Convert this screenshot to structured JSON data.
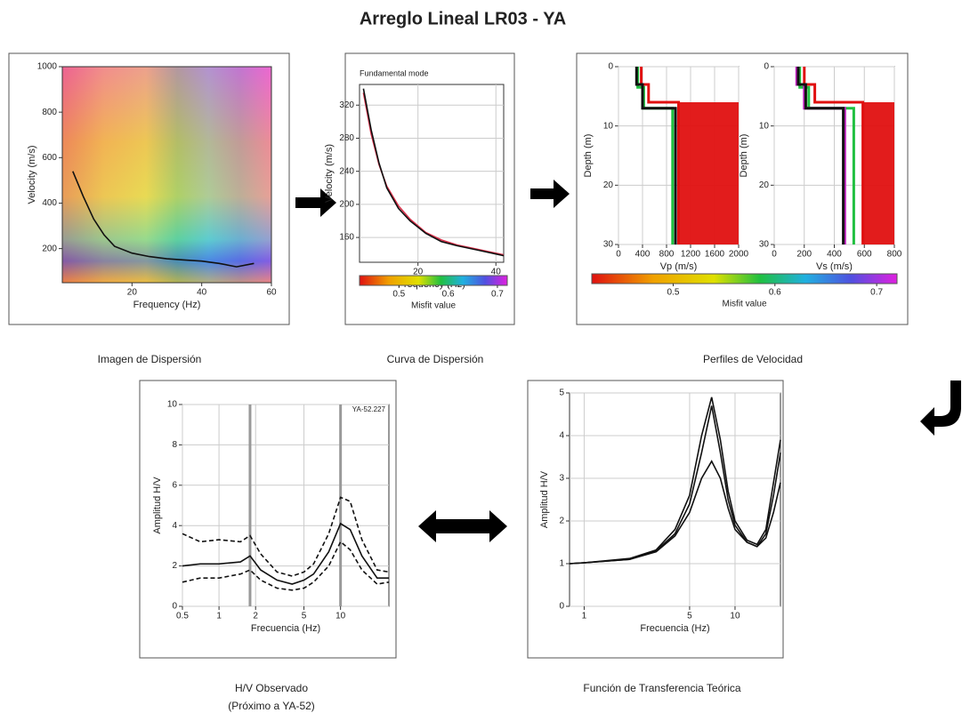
{
  "title": "Arreglo Lineal LR03 - YA",
  "captions": [
    "Imagen de Dispersión",
    "Curva de Dispersión",
    "Perfiles de Velocidad",
    "H/V Observado",
    "(Próximo a YA-52)",
    "Función de Transferencia Teórica"
  ],
  "chart_data": [
    {
      "type": "line",
      "xlabel": "Frequency (Hz)",
      "ylabel": "Velocity (m/s)",
      "xlim": [
        0,
        60
      ],
      "ylim": [
        50,
        1000
      ],
      "xticks": [
        20,
        40,
        60
      ],
      "yticks": [
        200,
        400,
        600,
        800,
        1000
      ],
      "series": [
        {
          "color": "#111111",
          "x": [
            3,
            6,
            9,
            12,
            15,
            20,
            25,
            30,
            35,
            40,
            45,
            50,
            55
          ],
          "values": [
            540,
            430,
            330,
            260,
            210,
            180,
            165,
            155,
            150,
            145,
            135,
            120,
            135
          ]
        }
      ]
    },
    {
      "type": "line",
      "title": "Fundamental mode",
      "xlabel": "Frequency (Hz)",
      "ylabel": "Velocity (m/s)",
      "xlim": [
        5,
        42
      ],
      "ylim": [
        130,
        345
      ],
      "xticks": [
        20,
        40
      ],
      "yticks": [
        160,
        200,
        240,
        280,
        320
      ],
      "grid": true,
      "series": [
        {
          "color": "#d9304a",
          "x": [
            6,
            8,
            10,
            12,
            15,
            18,
            22,
            26,
            30,
            35,
            40,
            42
          ],
          "values": [
            335,
            285,
            248,
            222,
            198,
            182,
            166,
            157,
            151,
            146,
            141,
            139
          ]
        },
        {
          "color": "#111111",
          "x": [
            6,
            8,
            10,
            12,
            15,
            18,
            22,
            26,
            30,
            35,
            40,
            42
          ],
          "values": [
            340,
            290,
            250,
            220,
            195,
            180,
            165,
            155,
            150,
            145,
            140,
            138
          ]
        }
      ],
      "colorbar": {
        "label": "Misfit value",
        "lim": [
          0.42,
          0.72
        ],
        "ticks": [
          0.5,
          0.6,
          0.7
        ]
      }
    },
    {
      "type": "profile",
      "xlabel": "Vp (m/s)",
      "ylabel": "Depth (m)",
      "xlim": [
        0,
        2000
      ],
      "ylim": [
        30,
        0
      ],
      "xticks": [
        0,
        400,
        800,
        1200,
        1600,
        2000
      ],
      "yticks": [
        0,
        10,
        20,
        30
      ],
      "grid": true,
      "series": [
        {
          "color": "#e01010",
          "x": [
            380,
            380,
            500,
            500,
            1000,
            1000
          ],
          "values": [
            0,
            3,
            3,
            6,
            6,
            30
          ]
        },
        {
          "color": "#20c040",
          "x": [
            320,
            320,
            420,
            420,
            900,
            900
          ],
          "values": [
            0,
            3.5,
            3.5,
            7,
            7,
            30
          ]
        },
        {
          "color": "#111111",
          "x": [
            300,
            300,
            400,
            400,
            950,
            950
          ],
          "values": [
            0,
            3,
            3,
            7,
            7,
            30
          ]
        }
      ]
    },
    {
      "type": "profile",
      "xlabel": "Vs (m/s)",
      "ylabel": "Depth (m)",
      "xlim": [
        0,
        800
      ],
      "ylim": [
        30,
        0
      ],
      "xticks": [
        0,
        200,
        400,
        600,
        800
      ],
      "yticks": [
        0,
        10,
        20,
        30
      ],
      "grid": true,
      "series": [
        {
          "color": "#e01010",
          "x": [
            200,
            200,
            270,
            270,
            590,
            590
          ],
          "values": [
            0,
            3,
            3,
            6,
            6,
            30
          ]
        },
        {
          "color": "#20c040",
          "x": [
            170,
            170,
            230,
            230,
            530,
            530
          ],
          "values": [
            0,
            3.5,
            3.5,
            7,
            7,
            30
          ]
        },
        {
          "color": "#c020c0",
          "x": [
            150,
            150,
            200,
            200,
            470,
            470
          ],
          "values": [
            0,
            3,
            3,
            7,
            7,
            30
          ]
        },
        {
          "color": "#111111",
          "x": [
            160,
            160,
            210,
            210,
            460,
            460
          ],
          "values": [
            0,
            3,
            3,
            7,
            7,
            30
          ]
        }
      ],
      "colorbar": {
        "label": "Misfit value",
        "lim": [
          0.42,
          0.72
        ],
        "ticks": [
          0.5,
          0.6,
          0.7
        ]
      }
    },
    {
      "type": "line",
      "annotation": "YA-52.227",
      "xlabel": "Frecuencia (Hz)",
      "ylabel": "Amplitud H/V",
      "xscale": "log",
      "xlim": [
        0.5,
        25
      ],
      "ylim": [
        0,
        10
      ],
      "xticks": [
        0.5,
        1,
        2,
        5,
        10
      ],
      "yticks": [
        0,
        2,
        4,
        6,
        8,
        10
      ],
      "grid": true,
      "vlines": [
        1.8,
        10
      ],
      "series": [
        {
          "color": "#111111",
          "style": "solid",
          "x": [
            0.5,
            0.7,
            1,
            1.5,
            1.8,
            2.2,
            3,
            4,
            5,
            6,
            8,
            10,
            12,
            15,
            20,
            25
          ],
          "values": [
            2.0,
            2.1,
            2.1,
            2.2,
            2.5,
            1.8,
            1.3,
            1.1,
            1.3,
            1.6,
            2.7,
            4.1,
            3.8,
            2.5,
            1.4,
            1.4
          ]
        },
        {
          "color": "#111111",
          "style": "dashed",
          "x": [
            0.5,
            0.7,
            1,
            1.5,
            1.8,
            2.2,
            3,
            4,
            5,
            6,
            8,
            10,
            12,
            15,
            20,
            25
          ],
          "values": [
            3.6,
            3.2,
            3.3,
            3.2,
            3.5,
            2.6,
            1.7,
            1.5,
            1.7,
            2.1,
            3.6,
            5.4,
            5.2,
            3.3,
            1.8,
            1.7
          ]
        },
        {
          "color": "#111111",
          "style": "dashed",
          "x": [
            0.5,
            0.7,
            1,
            1.5,
            1.8,
            2.2,
            3,
            4,
            5,
            6,
            8,
            10,
            12,
            15,
            20,
            25
          ],
          "values": [
            1.2,
            1.4,
            1.4,
            1.6,
            1.8,
            1.3,
            0.9,
            0.8,
            0.9,
            1.2,
            2.0,
            3.2,
            2.8,
            1.8,
            1.1,
            1.2
          ]
        }
      ]
    },
    {
      "type": "line",
      "xlabel": "Frecuencia (Hz)",
      "ylabel": "Amplitud H/V",
      "xscale": "log",
      "xlim": [
        0.8,
        20
      ],
      "ylim": [
        0,
        5
      ],
      "xticks": [
        1,
        5,
        10
      ],
      "yticks": [
        0,
        1,
        2,
        3,
        4,
        5
      ],
      "grid": true,
      "series": [
        {
          "color": "#111111",
          "style": "solid",
          "x": [
            0.8,
            1,
            2,
            3,
            4,
            5,
            6,
            7,
            8,
            9,
            10,
            12,
            14,
            16,
            18,
            20
          ],
          "values": [
            1,
            1.02,
            1.1,
            1.3,
            1.7,
            2.4,
            3.6,
            4.7,
            3.6,
            2.5,
            1.9,
            1.5,
            1.4,
            1.7,
            2.6,
            3.6
          ]
        },
        {
          "color": "#111111",
          "style": "solid",
          "x": [
            0.8,
            1,
            2,
            3,
            4,
            5,
            6,
            7,
            8,
            9,
            10,
            12,
            14,
            16,
            18,
            20
          ],
          "values": [
            1,
            1.02,
            1.1,
            1.28,
            1.65,
            2.2,
            3.0,
            3.4,
            3.0,
            2.3,
            1.8,
            1.5,
            1.4,
            1.6,
            2.2,
            2.9
          ]
        },
        {
          "color": "#111111",
          "style": "solid",
          "x": [
            0.8,
            1,
            2,
            3,
            4,
            5,
            6,
            7,
            8,
            9,
            10,
            12,
            14,
            16,
            18,
            20
          ],
          "values": [
            1,
            1.02,
            1.12,
            1.32,
            1.8,
            2.6,
            4.0,
            4.9,
            3.9,
            2.7,
            2.0,
            1.55,
            1.45,
            1.8,
            2.9,
            3.9
          ]
        }
      ]
    }
  ]
}
